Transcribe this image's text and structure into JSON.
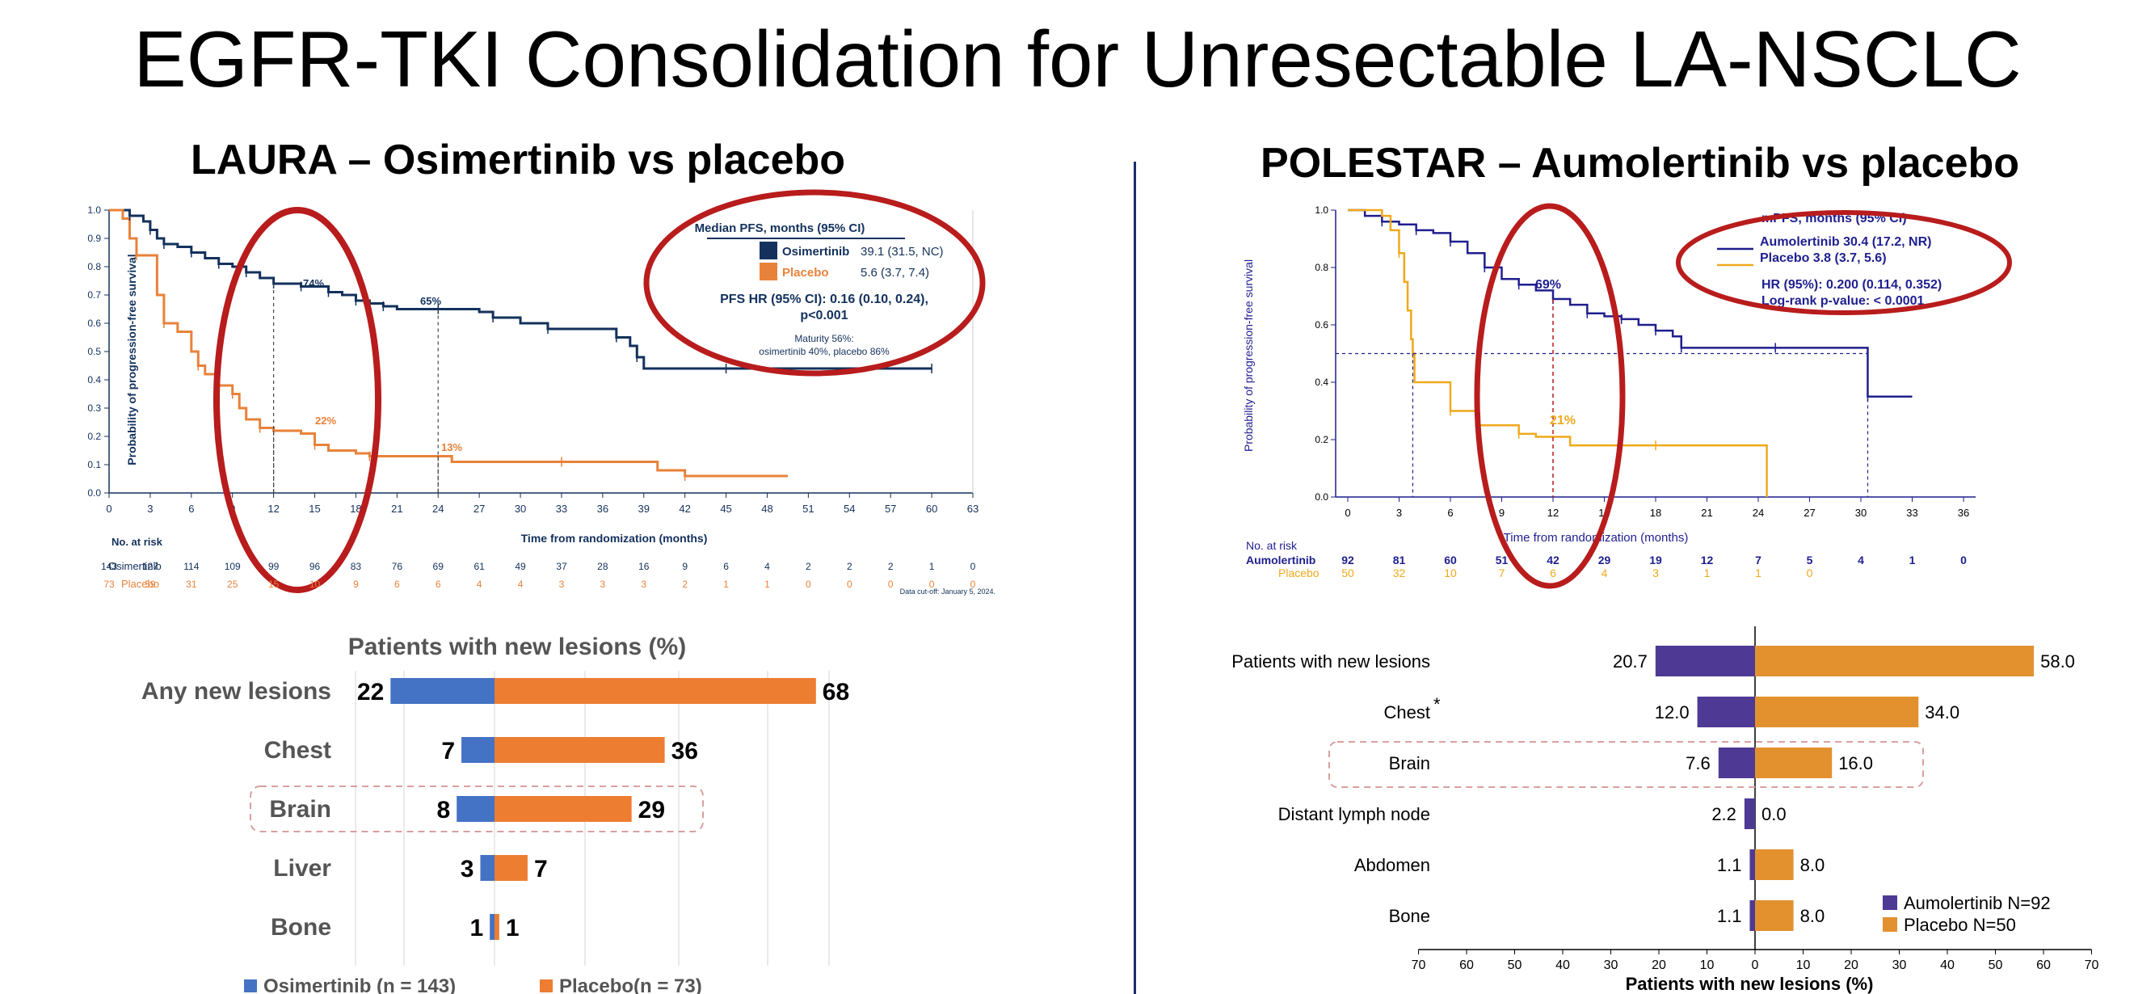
{
  "title": "EGFR-TKI Consolidation for Unresectable LA-NSCLC",
  "colors": {
    "osimertinib": "#13315c",
    "placebo_laura": "#e8823a",
    "aumolertinib": "#1f1f8f",
    "placebo_polestar": "#f0a91c",
    "bar_blue": "#4472c4",
    "bar_orange": "#ed7d31",
    "bar_purple": "#4e3a94",
    "bar_gold": "#e2912e",
    "circle": "#b81c1c",
    "dashbox": "#d9a0a0"
  },
  "laura": {
    "title": "LAURA – Osimertinib vs placebo",
    "km": {
      "ylabel": "Probability of progression-free survival",
      "xlabel": "Time from randomization (months)",
      "xticks": [
        "0",
        "3",
        "6",
        "9",
        "12",
        "15",
        "18",
        "21",
        "24",
        "27",
        "30",
        "33",
        "36",
        "39",
        "42",
        "45",
        "48",
        "51",
        "54",
        "57",
        "60",
        "63"
      ],
      "yticks": [
        "0.0",
        "0.1",
        "0.2",
        "0.3",
        "0.4",
        "0.5",
        "0.6",
        "0.7",
        "0.8",
        "0.9",
        "1.0"
      ],
      "annotations": {
        "osi12": "74%",
        "osi24": "65%",
        "pbo12": "22%",
        "pbo24": "13%"
      },
      "legend": {
        "header": "Median PFS, months (95% CI)",
        "osi_name": "Osimertinib",
        "osi_val": "39.1 (31.5, NC)",
        "pbo_name": "Placebo",
        "pbo_val": "5.6 (3.7, 7.4)",
        "hr1": "PFS HR (95% CI): 0.16 (0.10, 0.24),",
        "hr2": "p<0.001",
        "mat1": "Maturity 56%:",
        "mat2": "osimertinib 40%, placebo 86%"
      },
      "risk_header": "No. at risk",
      "risk_osi_label": "Osimertinib",
      "risk_pbo_label": "Placebo",
      "risk_osi": [
        "143",
        "127",
        "114",
        "109",
        "99",
        "96",
        "83",
        "76",
        "69",
        "61",
        "49",
        "37",
        "28",
        "16",
        "9",
        "6",
        "4",
        "2",
        "2",
        "2",
        "1",
        "0"
      ],
      "risk_pbo": [
        "73",
        "59",
        "31",
        "25",
        "15",
        "10",
        "9",
        "6",
        "6",
        "4",
        "4",
        "3",
        "3",
        "3",
        "2",
        "1",
        "1",
        "0",
        "0",
        "0",
        "0",
        "0"
      ],
      "cutoff": "Data cut-off: January 5, 2024.",
      "osi_curve": [
        [
          0,
          1.0
        ],
        [
          1,
          1.0
        ],
        [
          1.5,
          0.98
        ],
        [
          2.5,
          0.96
        ],
        [
          3,
          0.93
        ],
        [
          3.5,
          0.9
        ],
        [
          4,
          0.88
        ],
        [
          5,
          0.87
        ],
        [
          6,
          0.85
        ],
        [
          7,
          0.83
        ],
        [
          8,
          0.81
        ],
        [
          9,
          0.8
        ],
        [
          10,
          0.78
        ],
        [
          11,
          0.76
        ],
        [
          12,
          0.74
        ],
        [
          13,
          0.74
        ],
        [
          14,
          0.73
        ],
        [
          15,
          0.73
        ],
        [
          16,
          0.71
        ],
        [
          17,
          0.7
        ],
        [
          18,
          0.68
        ],
        [
          19,
          0.67
        ],
        [
          20,
          0.66
        ],
        [
          21,
          0.65
        ],
        [
          24,
          0.65
        ],
        [
          27,
          0.64
        ],
        [
          28,
          0.62
        ],
        [
          30,
          0.6
        ],
        [
          32,
          0.58
        ],
        [
          36,
          0.58
        ],
        [
          37,
          0.55
        ],
        [
          38,
          0.52
        ],
        [
          38.5,
          0.48
        ],
        [
          39,
          0.44
        ],
        [
          45,
          0.44
        ],
        [
          51,
          0.44
        ],
        [
          60,
          0.44
        ]
      ],
      "pbo_curve": [
        [
          0,
          1.0
        ],
        [
          1,
          0.97
        ],
        [
          1.5,
          0.9
        ],
        [
          2,
          0.84
        ],
        [
          3,
          0.84
        ],
        [
          3.5,
          0.7
        ],
        [
          4,
          0.6
        ],
        [
          5,
          0.57
        ],
        [
          6,
          0.5
        ],
        [
          6.5,
          0.45
        ],
        [
          7,
          0.42
        ],
        [
          8,
          0.38
        ],
        [
          9,
          0.35
        ],
        [
          9.5,
          0.3
        ],
        [
          10,
          0.26
        ],
        [
          11,
          0.23
        ],
        [
          12,
          0.22
        ],
        [
          14,
          0.21
        ],
        [
          15,
          0.17
        ],
        [
          16,
          0.15
        ],
        [
          18,
          0.14
        ],
        [
          19,
          0.13
        ],
        [
          24,
          0.13
        ],
        [
          25,
          0.11
        ],
        [
          33,
          0.11
        ],
        [
          39,
          0.11
        ],
        [
          40,
          0.08
        ],
        [
          42,
          0.06
        ],
        [
          48,
          0.06
        ],
        [
          49.5,
          0.06
        ]
      ]
    },
    "lesions": {
      "title": "Patients with new lesions (%)",
      "categories": [
        "Any new lesions",
        "Chest",
        "Brain",
        "Liver",
        "Bone"
      ],
      "osi": [
        22,
        7,
        8,
        3,
        1
      ],
      "pbo": [
        68,
        36,
        29,
        7,
        1
      ],
      "legend_osi": "Osimertinib (n = 143)",
      "legend_pbo": "Placebo(n = 73)"
    }
  },
  "polestar": {
    "title": "POLESTAR – Aumolertinib vs placebo",
    "km": {
      "ylabel": "Probability of progression-free survival",
      "xlabel": "Time from randomization (months)",
      "xticks": [
        "0",
        "3",
        "6",
        "9",
        "12",
        "15",
        "18",
        "21",
        "24",
        "27",
        "30",
        "33",
        "36"
      ],
      "yticks": [
        "0.0",
        "0.2",
        "0.4",
        "0.6",
        "0.8",
        "1.0"
      ],
      "annotations": {
        "aum12": "69%",
        "pbo12": "21%"
      },
      "legend": {
        "header": "mPFS, months (95% CI)",
        "aum": "Aumolertinib 30.4 (17.2, NR)",
        "pbo": "Placebo 3.8 (3.7, 5.6)",
        "hr": "HR (95%): 0.200 (0.114, 0.352)",
        "p": "Log-rank p-value: < 0.0001"
      },
      "risk_header": "No. at risk",
      "risk_aum_label": "Aumolertinib",
      "risk_pbo_label": "Placebo",
      "risk_aum": [
        "92",
        "81",
        "60",
        "51",
        "42",
        "29",
        "19",
        "12",
        "7",
        "5",
        "4",
        "1",
        "0"
      ],
      "risk_pbo": [
        "50",
        "32",
        "10",
        "7",
        "6",
        "4",
        "3",
        "1",
        "1",
        "0"
      ],
      "aum_curve": [
        [
          0,
          1.0
        ],
        [
          1,
          0.98
        ],
        [
          2,
          0.96
        ],
        [
          3,
          0.95
        ],
        [
          4,
          0.93
        ],
        [
          5,
          0.92
        ],
        [
          6,
          0.89
        ],
        [
          7,
          0.85
        ],
        [
          8,
          0.8
        ],
        [
          9,
          0.76
        ],
        [
          10,
          0.74
        ],
        [
          11,
          0.72
        ],
        [
          12,
          0.69
        ],
        [
          13,
          0.67
        ],
        [
          14,
          0.64
        ],
        [
          15,
          0.63
        ],
        [
          16,
          0.62
        ],
        [
          17,
          0.6
        ],
        [
          18,
          0.58
        ],
        [
          19,
          0.56
        ],
        [
          19.5,
          0.52
        ],
        [
          21,
          0.52
        ],
        [
          25,
          0.52
        ],
        [
          30.4,
          0.52
        ],
        [
          30.4,
          0.35
        ],
        [
          33,
          0.35
        ]
      ],
      "pbo_curve": [
        [
          0,
          1.0
        ],
        [
          1.5,
          1.0
        ],
        [
          2,
          0.98
        ],
        [
          2.5,
          0.93
        ],
        [
          3,
          0.85
        ],
        [
          3.3,
          0.75
        ],
        [
          3.5,
          0.65
        ],
        [
          3.7,
          0.55
        ],
        [
          3.8,
          0.5
        ],
        [
          3.9,
          0.4
        ],
        [
          5,
          0.4
        ],
        [
          5.8,
          0.4
        ],
        [
          6,
          0.3
        ],
        [
          7,
          0.3
        ],
        [
          7.5,
          0.25
        ],
        [
          9,
          0.25
        ],
        [
          10,
          0.22
        ],
        [
          11,
          0.21
        ],
        [
          12,
          0.21
        ],
        [
          13,
          0.18
        ],
        [
          18,
          0.18
        ],
        [
          22,
          0.18
        ],
        [
          24.5,
          0.18
        ],
        [
          24.5,
          0.0
        ]
      ]
    },
    "lesions": {
      "categories": [
        "Patients with new lesions",
        "Chest",
        "Brain",
        "Distant lymph node",
        "Abdomen",
        "Bone"
      ],
      "chest_marker": "*",
      "aum": [
        20.7,
        12.0,
        7.6,
        2.2,
        1.1,
        1.1
      ],
      "pbo": [
        58.0,
        34.0,
        16.0,
        0.0,
        8.0,
        8.0
      ],
      "aum_labels": [
        "20.7",
        "12.0",
        "7.6",
        "2.2",
        "1.1",
        "1.1"
      ],
      "pbo_labels": [
        "58.0",
        "34.0",
        "16.0",
        "0.0",
        "8.0",
        "8.0"
      ],
      "xticks": [
        "70",
        "60",
        "50",
        "40",
        "30",
        "20",
        "10",
        "0",
        "10",
        "20",
        "30",
        "40",
        "50",
        "60",
        "70"
      ],
      "xlabel": "Patients with new lesions (%)",
      "legend_aum": "Aumolertinib N=92",
      "legend_pbo": "Placebo N=50"
    }
  }
}
